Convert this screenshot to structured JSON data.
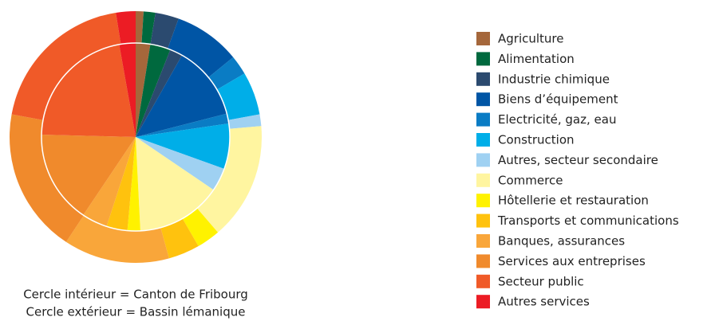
{
  "chart_data": {
    "type": "pie",
    "categories": [
      "Agriculture",
      "Alimentation",
      "Industrie chimique",
      "Biens d’équipement",
      "Electricité, gaz, eau",
      "Construction",
      "Autres, secteur secondaire",
      "Commerce",
      "Hôtellerie et restauration",
      "Transports et communications",
      "Banques, assurances",
      "Services aux entreprises",
      "Secteur public",
      "Autres services"
    ],
    "colors": [
      "#a5673b",
      "#00693e",
      "#2b4a6f",
      "#0055a5",
      "#0a7cc4",
      "#00aee8",
      "#9fd1f2",
      "#fff5a0",
      "#fff200",
      "#ffc20e",
      "#f9a63a",
      "#f08a2c",
      "#f05a28",
      "#ec1c24"
    ],
    "series": [
      {
        "name": "Cercle intérieur = Canton de Fribourg",
        "values": [
          2.5,
          3.5,
          2.2,
          12.8,
          1.7,
          7.8,
          4,
          14.7,
          2.2,
          3.6,
          4.4,
          16,
          21.8,
          2.8
        ]
      },
      {
        "name": "Cercle extérieur = Bassin lémanique",
        "values": [
          1,
          1.5,
          3,
          8.5,
          2.5,
          5.5,
          1.5,
          15,
          3,
          4,
          13.5,
          18.5,
          19.5,
          2.5
        ]
      }
    ]
  }
}
